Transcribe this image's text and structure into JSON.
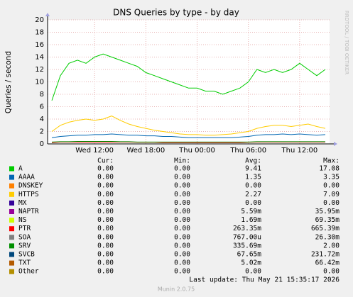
{
  "chart_data": {
    "type": "line",
    "title": "DNS Queries by type - by day",
    "y_label": "Queries / second",
    "side_note": "RRDTOOL / TOBI OETIKER",
    "categories": [
      null,
      null,
      null,
      null,
      null,
      "Wed 12:00",
      null,
      null,
      null,
      null,
      null,
      "Wed 18:00",
      null,
      null,
      null,
      null,
      null,
      "Thu 00:00",
      null,
      null,
      null,
      null,
      null,
      "Thu 06:00",
      null,
      null,
      null,
      null,
      null,
      "Thu 12:00",
      null,
      null,
      null
    ],
    "ylim": [
      0,
      20
    ],
    "yticks": [
      0,
      2,
      4,
      6,
      8,
      10,
      12,
      14,
      16,
      18,
      20
    ],
    "grid": true,
    "table_headers": [
      "Cur:",
      "Min:",
      "Avg:",
      "Max:"
    ],
    "series": [
      {
        "name": "A",
        "color": "#00cc00",
        "stats": [
          "0.00",
          "0.00",
          "9.41",
          "17.08"
        ],
        "values": [
          7,
          11,
          13,
          13.5,
          13,
          14,
          14.5,
          14,
          13.5,
          13,
          12.5,
          11.5,
          11,
          10.5,
          10,
          9.5,
          9,
          9,
          8.5,
          8.5,
          8,
          8.5,
          9,
          10,
          12,
          11.5,
          12,
          11.5,
          12,
          13,
          12,
          11,
          12
        ]
      },
      {
        "name": "AAAA",
        "color": "#0066b3",
        "stats": [
          "0.00",
          "0.00",
          "1.35",
          "3.35"
        ],
        "values": [
          1,
          1.2,
          1.3,
          1.4,
          1.4,
          1.5,
          1.5,
          1.6,
          1.5,
          1.4,
          1.4,
          1.3,
          1.3,
          1.2,
          1.2,
          1.1,
          1,
          1,
          1,
          1,
          1,
          1,
          1.1,
          1.2,
          1.4,
          1.5,
          1.5,
          1.6,
          1.5,
          1.6,
          1.5,
          1.4,
          1.5
        ]
      },
      {
        "name": "DNSKEY",
        "color": "#ff8000",
        "stats": [
          "0.00",
          "0.00",
          "0.00",
          "0.00"
        ]
      },
      {
        "name": "HTTPS",
        "color": "#ffcc00",
        "stats": [
          "0.00",
          "0.00",
          "2.27",
          "7.09"
        ],
        "values": [
          2,
          3,
          3.5,
          3.8,
          4,
          3.8,
          4,
          4.5,
          3.8,
          3.2,
          2.8,
          2.5,
          2.2,
          2,
          1.8,
          1.6,
          1.5,
          1.5,
          1.4,
          1.4,
          1.5,
          1.6,
          1.8,
          2,
          2.5,
          2.8,
          3,
          3,
          2.8,
          3,
          3.2,
          2.8,
          2.5
        ]
      },
      {
        "name": "MX",
        "color": "#330099",
        "stats": [
          "0.00",
          "0.00",
          "0.00",
          "0.00"
        ]
      },
      {
        "name": "NAPTR",
        "color": "#990099",
        "stats": [
          "0.00",
          "0.00",
          "5.59m",
          "35.95m"
        ]
      },
      {
        "name": "NS",
        "color": "#ccff00",
        "stats": [
          "0.00",
          "0.00",
          "1.69m",
          "69.35m"
        ]
      },
      {
        "name": "PTR",
        "color": "#ff0000",
        "stats": [
          "0.00",
          "0.00",
          "263.35m",
          "665.39m"
        ],
        "values": [
          0.2,
          0.3,
          0.3,
          0.3,
          0.3,
          0.3,
          0.3,
          0.3,
          0.3,
          0.3,
          0.25,
          0.25,
          0.25,
          0.2,
          0.2,
          0.2,
          0.2,
          0.2,
          0.2,
          0.2,
          0.2,
          0.2,
          0.2,
          0.25,
          0.3,
          0.3,
          0.3,
          0.3,
          0.3,
          0.3,
          0.3,
          0.3,
          0.3
        ]
      },
      {
        "name": "SOA",
        "color": "#808080",
        "stats": [
          "0.00",
          "0.00",
          "767.00u",
          "26.30m"
        ]
      },
      {
        "name": "SRV",
        "color": "#008f00",
        "stats": [
          "0.00",
          "0.00",
          "335.69m",
          "2.00"
        ],
        "values": [
          0.3,
          0.35,
          0.35,
          0.4,
          0.4,
          0.4,
          0.4,
          0.4,
          0.35,
          0.35,
          0.3,
          0.3,
          0.3,
          0.3,
          0.3,
          0.3,
          0.3,
          0.3,
          0.3,
          0.3,
          0.3,
          0.3,
          0.3,
          0.3,
          0.35,
          0.35,
          0.35,
          0.35,
          0.35,
          0.35,
          0.35,
          0.35,
          0.35
        ]
      },
      {
        "name": "SVCB",
        "color": "#00487d",
        "stats": [
          "0.00",
          "0.00",
          "67.65m",
          "231.72m"
        ]
      },
      {
        "name": "TXT",
        "color": "#b35a00",
        "stats": [
          "0.00",
          "0.00",
          "5.02m",
          "66.42m"
        ]
      },
      {
        "name": "Other",
        "color": "#b38f00",
        "stats": [
          "0.00",
          "0.00",
          "0.00",
          "0.00"
        ]
      }
    ],
    "last_update": "Last update: Thu May 21 15:35:17 2026",
    "footer": "Munin 2.0.75"
  }
}
